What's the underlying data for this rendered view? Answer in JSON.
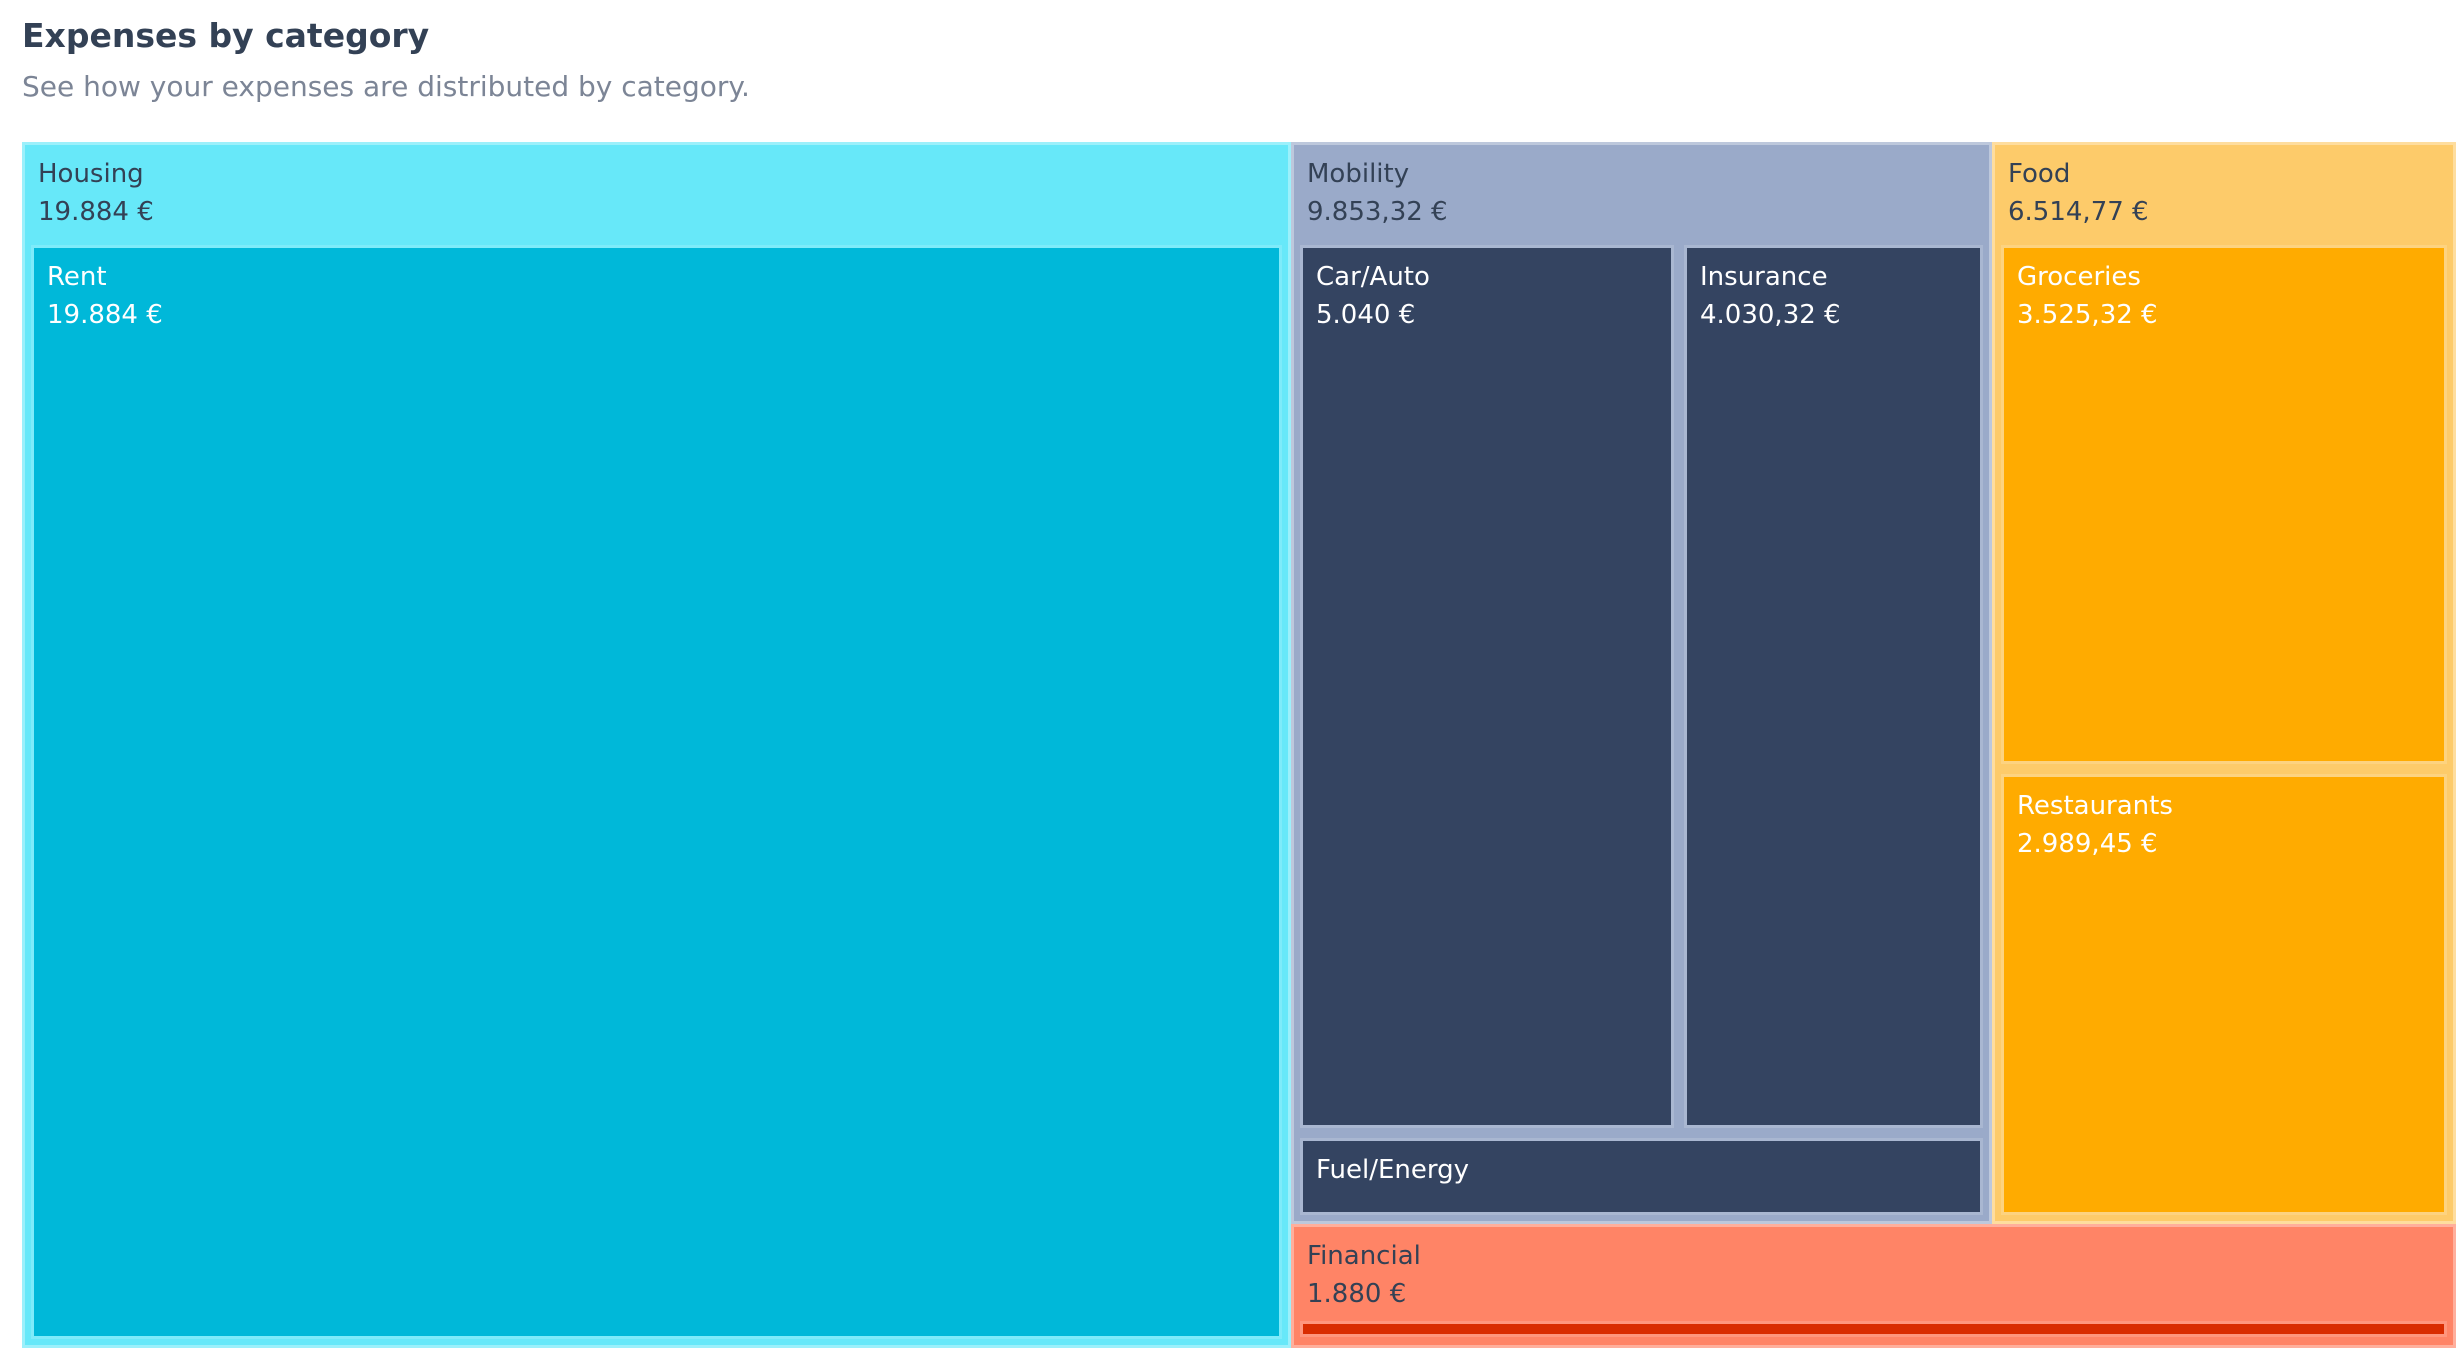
{
  "header": {
    "title": "Expenses by category",
    "subtitle": "See how your expenses are distributed by category."
  },
  "chart_data": {
    "type": "treemap",
    "currency": "€",
    "categories": [
      {
        "name": "Housing",
        "value_label": "19.884 €",
        "value": 19884,
        "color": "#67e8f9",
        "child_color": "#00b8d9",
        "text_color": "#334155",
        "child_text_color": "#ffffff",
        "children": [
          {
            "name": "Rent",
            "value_label": "19.884 €",
            "value": 19884
          }
        ]
      },
      {
        "name": "Mobility",
        "value_label": "9.853,32 €",
        "value": 9853.32,
        "color": "#9aaac9",
        "child_color": "#344461",
        "text_color": "#334155",
        "child_text_color": "#ffffff",
        "children": [
          {
            "name": "Car/Auto",
            "value_label": "5.040 €",
            "value": 5040
          },
          {
            "name": "Insurance",
            "value_label": "4.030,32 €",
            "value": 4030.32
          },
          {
            "name": "Fuel/Energy",
            "value_label": "",
            "value": 783
          }
        ]
      },
      {
        "name": "Food",
        "value_label": "6.514,77 €",
        "value": 6514.77,
        "color": "#fdcb6a",
        "child_color": "#ffab00",
        "text_color": "#334155",
        "child_text_color": "#ffffff",
        "children": [
          {
            "name": "Groceries",
            "value_label": "3.525,32 €",
            "value": 3525.32
          },
          {
            "name": "Restaurants",
            "value_label": "2.989,45 €",
            "value": 2989.45
          }
        ]
      },
      {
        "name": "Financial",
        "value_label": "1.880 €",
        "value": 1880,
        "color": "#ff8466",
        "child_color": "#d92c00",
        "text_color": "#334155",
        "child_text_color": "#ffffff",
        "children": [
          {
            "name": "",
            "value_label": "",
            "value": 1880
          }
        ]
      }
    ]
  }
}
